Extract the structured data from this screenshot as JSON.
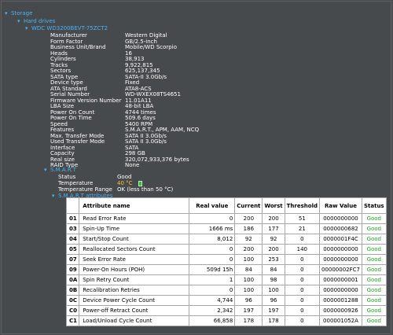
{
  "tree": {
    "storage": "Storage",
    "hard_drives": "Hard drives",
    "drive": "WDC WD3200BEVT-75ZCT2",
    "smart": "S.M.A.R.T",
    "smart_attributes": "S.M.A.R.T attributes"
  },
  "properties": [
    {
      "key": "Manufacturer",
      "value": "Western Digital"
    },
    {
      "key": "Form Factor",
      "value": "GB/2.5-inch"
    },
    {
      "key": "Business Unit/Brand",
      "value": "Mobile/WD Scorpio"
    },
    {
      "key": "Heads",
      "value": "16"
    },
    {
      "key": "Cylinders",
      "value": "38,913"
    },
    {
      "key": "Tracks",
      "value": "9,922,815"
    },
    {
      "key": "Sectors",
      "value": "625,137,345"
    },
    {
      "key": "SATA type",
      "value": "SATA-II 3.0Gb/s"
    },
    {
      "key": "Device type",
      "value": "Fixed"
    },
    {
      "key": "ATA Standard",
      "value": "ATA8-ACS"
    },
    {
      "key": "Serial Number",
      "value": "WD-WXEX08TS4651"
    },
    {
      "key": "Firmware Version Number",
      "value": "11.01A11"
    },
    {
      "key": "LBA Size",
      "value": "48-bit LBA"
    },
    {
      "key": "Power On Count",
      "value": "4744 times"
    },
    {
      "key": "Power On Time",
      "value": "509.6 days"
    },
    {
      "key": "Speed",
      "value": "5400 RPM"
    },
    {
      "key": "Features",
      "value": "S.M.A.R.T., APM, AAM, NCQ"
    },
    {
      "key": "Max. Transfer Mode",
      "value": "SATA II 3.0Gb/s"
    },
    {
      "key": "Used Transfer Mode",
      "value": "SATA II 3.0Gb/s"
    },
    {
      "key": "Interface",
      "value": "SATA"
    },
    {
      "key": "Capacity",
      "value": "298 GB"
    },
    {
      "key": "Real size",
      "value": "320,072,933,376 bytes"
    },
    {
      "key": "RAID Type",
      "value": "None"
    }
  ],
  "smart": {
    "status_label": "Status",
    "status_value": "Good",
    "temperature_label": "Temperature",
    "temperature_value": "40 °C",
    "temperature_color": "#ffc23a",
    "temperature_range_label": "Temperature Range",
    "temperature_range_value": "OK (less than 50 °C)"
  },
  "table": {
    "headers": [
      "",
      "Attribute name",
      "Real value",
      "Current",
      "Worst",
      "Threshold",
      "Raw Value",
      "Status"
    ],
    "rows": [
      {
        "id": "01",
        "name": "Read Error Rate",
        "real": "0",
        "current": "200",
        "worst": "200",
        "threshold": "51",
        "raw": "0000000000",
        "status": "Good"
      },
      {
        "id": "03",
        "name": "Spin-Up Time",
        "real": "1666 ms",
        "current": "186",
        "worst": "177",
        "threshold": "21",
        "raw": "0000000682",
        "status": "Good"
      },
      {
        "id": "04",
        "name": "Start/Stop Count",
        "real": "8,012",
        "current": "92",
        "worst": "92",
        "threshold": "0",
        "raw": "0000001F4C",
        "status": "Good"
      },
      {
        "id": "05",
        "name": "Reallocated Sectors Count",
        "real": "0",
        "current": "200",
        "worst": "200",
        "threshold": "140",
        "raw": "0000000000",
        "status": "Good"
      },
      {
        "id": "07",
        "name": "Seek Error Rate",
        "real": "0",
        "current": "100",
        "worst": "253",
        "threshold": "0",
        "raw": "0000000000",
        "status": "Good"
      },
      {
        "id": "09",
        "name": "Power-On Hours (POH)",
        "real": "509d 15h",
        "current": "84",
        "worst": "84",
        "threshold": "0",
        "raw": "00000002FC7",
        "status": "Good"
      },
      {
        "id": "0A",
        "name": "Spin Retry Count",
        "real": "1",
        "current": "100",
        "worst": "98",
        "threshold": "0",
        "raw": "0000000001",
        "status": "Good"
      },
      {
        "id": "0B",
        "name": "Recalibration Retries",
        "real": "0",
        "current": "100",
        "worst": "100",
        "threshold": "0",
        "raw": "0000000000",
        "status": "Good"
      },
      {
        "id": "0C",
        "name": "Device Power Cycle Count",
        "real": "4,744",
        "current": "96",
        "worst": "96",
        "threshold": "0",
        "raw": "0000001288",
        "status": "Good"
      },
      {
        "id": "C0",
        "name": "Power-off Retract Count",
        "real": "2,342",
        "current": "197",
        "worst": "197",
        "threshold": "0",
        "raw": "0000000926",
        "status": "Good"
      },
      {
        "id": "C1",
        "name": "Load/Unload Cycle Count",
        "real": "66,858",
        "current": "178",
        "worst": "178",
        "threshold": "0",
        "raw": "000001052A",
        "status": "Good"
      }
    ]
  }
}
